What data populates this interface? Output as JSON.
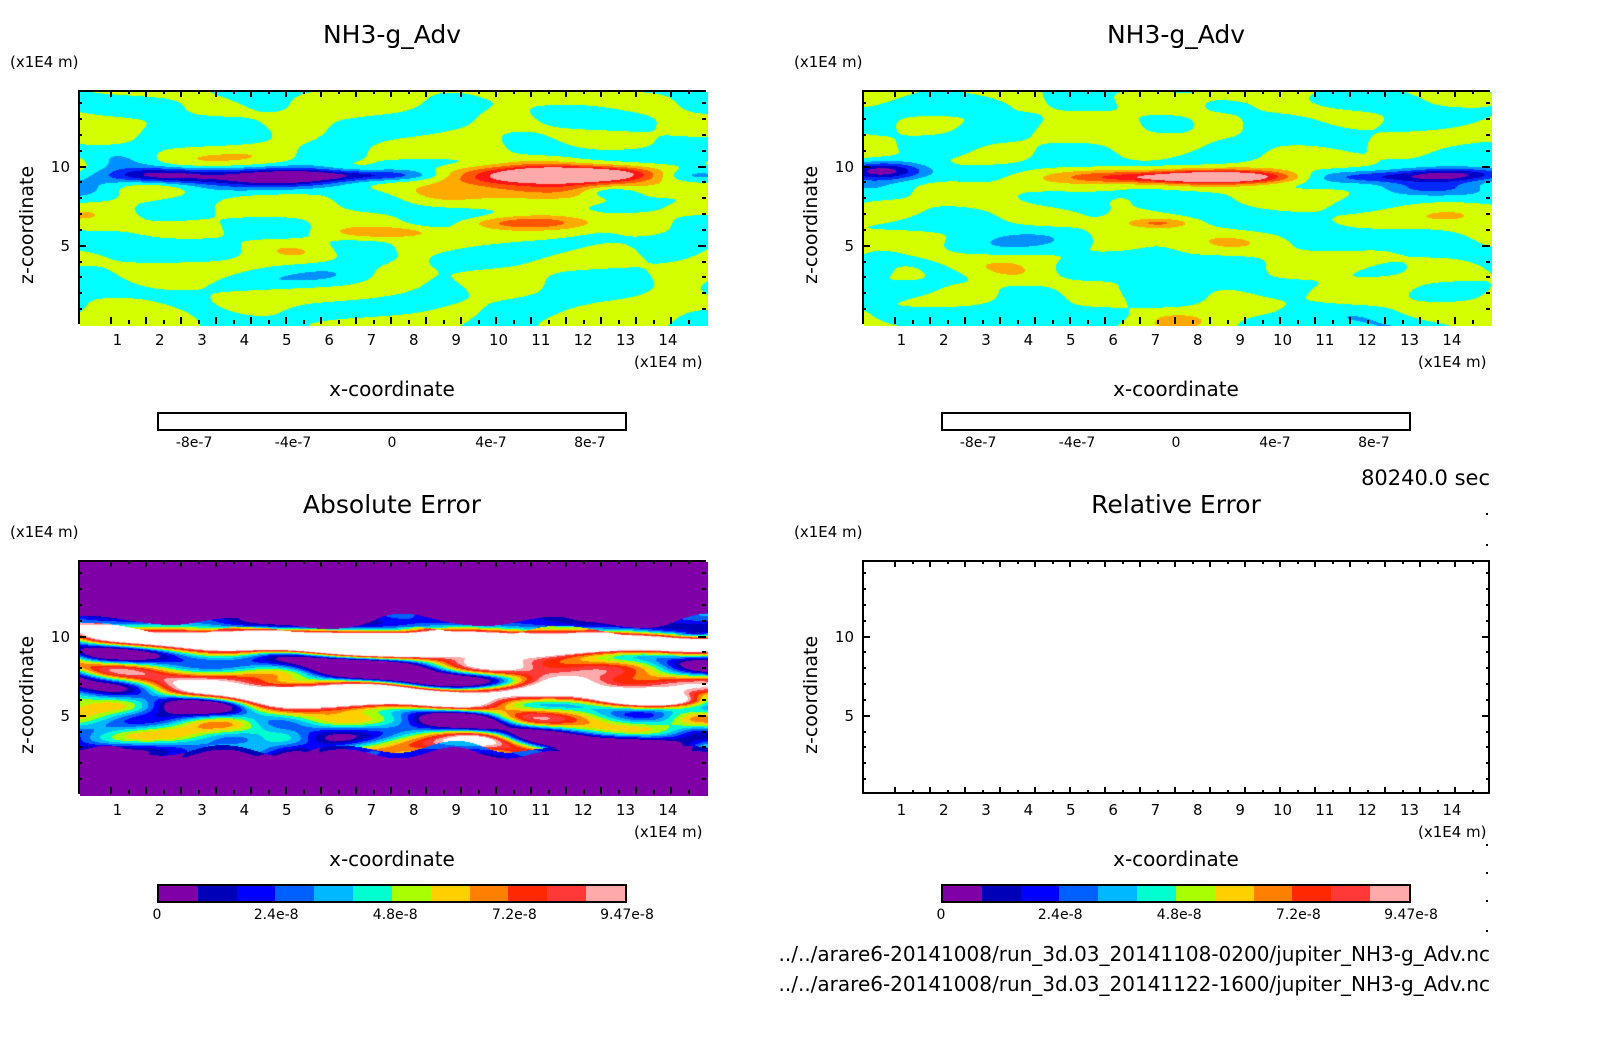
{
  "time_label": "80240.0 sec",
  "files": [
    "../../arare6-20141008/run_3d.03_20141108-0200/jupiter_NH3-g_Adv.nc",
    "../../arare6-20141008/run_3d.03_20141122-1600/jupiter_NH3-g_Adv.nc"
  ],
  "chart_data": [
    {
      "type": "heatmap",
      "title": "NH3-g_Adv",
      "xlabel": "x-coordinate",
      "ylabel": "z-coordinate",
      "x_unit": "(x1E4 m)",
      "y_unit": "(x1E4 m)",
      "xlim": [
        0.07,
        14.9
      ],
      "ylim": [
        0.05,
        14.85
      ],
      "xticks": [
        1,
        2,
        3,
        4,
        5,
        6,
        7,
        8,
        9,
        10,
        11,
        12,
        13,
        14
      ],
      "yticks": [
        5,
        10
      ],
      "levels": [
        -8e-07,
        -6e-07,
        -4e-07,
        -2e-07,
        0,
        2e-07,
        4e-07,
        6e-07,
        8e-07
      ],
      "colors": [
        "#8000a8",
        "#0000c8",
        "#0028ff",
        "#0090ff",
        "#00ffff",
        "#d4ff00",
        "#ffaa00",
        "#ff5500",
        "#ff1414",
        "#ffaaaa"
      ],
      "colorbar_labels": [
        {
          "text": "-8e-7",
          "value": -8e-07
        },
        {
          "text": "-4e-7",
          "value": -4e-07
        },
        {
          "text": "0",
          "value": 0
        },
        {
          "text": "4e-7",
          "value": 4e-07
        },
        {
          "text": "8e-7",
          "value": 8e-07
        }
      ],
      "colorbar_range": [
        -9.5e-07,
        9.5e-07
      ],
      "field": {
        "kind": "signed",
        "seed": 11,
        "noise_amp": 1.6e-07,
        "features": [
          {
            "x": 2.0,
            "z": 9.6,
            "sx": 0.9,
            "sz": 0.35,
            "amp": -9.5e-07
          },
          {
            "x": 4.8,
            "z": 9.5,
            "sx": 1.2,
            "sz": 0.4,
            "amp": -9.5e-07
          },
          {
            "x": 6.8,
            "z": 9.6,
            "sx": 1.2,
            "sz": 0.25,
            "amp": -6e-07
          },
          {
            "x": 10.5,
            "z": 9.6,
            "sx": 1.6,
            "sz": 0.45,
            "amp": 9e-07
          },
          {
            "x": 12.3,
            "z": 9.7,
            "sx": 1.1,
            "sz": 0.35,
            "amp": 8e-07
          },
          {
            "x": 11.0,
            "z": 8.6,
            "sx": 1.1,
            "sz": 0.5,
            "amp": 5e-07
          },
          {
            "x": 10.5,
            "z": 6.6,
            "sx": 1.0,
            "sz": 0.3,
            "amp": 5e-07
          },
          {
            "x": 7.3,
            "z": 6.0,
            "sx": 0.8,
            "sz": 0.25,
            "amp": 3.5e-07
          },
          {
            "x": 14.5,
            "z": 9.6,
            "sx": 0.7,
            "sz": 0.3,
            "amp": -4e-07
          },
          {
            "x": 12.5,
            "z": 8.6,
            "sx": 0.5,
            "sz": 0.3,
            "amp": -3.5e-07
          }
        ]
      }
    },
    {
      "type": "heatmap",
      "title": "NH3-g_Adv",
      "xlabel": "x-coordinate",
      "ylabel": "z-coordinate",
      "x_unit": "(x1E4 m)",
      "y_unit": "(x1E4 m)",
      "xlim": [
        0.07,
        14.9
      ],
      "ylim": [
        0.05,
        14.85
      ],
      "xticks": [
        1,
        2,
        3,
        4,
        5,
        6,
        7,
        8,
        9,
        10,
        11,
        12,
        13,
        14
      ],
      "yticks": [
        5,
        10
      ],
      "levels": [
        -8e-07,
        -6e-07,
        -4e-07,
        -2e-07,
        0,
        2e-07,
        4e-07,
        6e-07,
        8e-07
      ],
      "colors": [
        "#8000a8",
        "#0000c8",
        "#0028ff",
        "#0090ff",
        "#00ffff",
        "#d4ff00",
        "#ffaa00",
        "#ff5500",
        "#ff1414",
        "#ffaaaa"
      ],
      "colorbar_labels": [
        {
          "text": "-8e-7",
          "value": -8e-07
        },
        {
          "text": "-4e-7",
          "value": -4e-07
        },
        {
          "text": "0",
          "value": 0
        },
        {
          "text": "4e-7",
          "value": 4e-07
        },
        {
          "text": "8e-7",
          "value": 8e-07
        }
      ],
      "colorbar_range": [
        -9.5e-07,
        9.5e-07
      ],
      "field": {
        "kind": "signed",
        "seed": 29,
        "noise_amp": 1.6e-07,
        "features": [
          {
            "x": 0.5,
            "z": 9.9,
            "sx": 0.7,
            "sz": 0.4,
            "amp": -9.5e-07
          },
          {
            "x": 7.0,
            "z": 9.5,
            "sx": 1.4,
            "sz": 0.3,
            "amp": 8.5e-07
          },
          {
            "x": 9.0,
            "z": 9.5,
            "sx": 1.2,
            "sz": 0.3,
            "amp": 8.5e-07
          },
          {
            "x": 12.5,
            "z": 9.5,
            "sx": 1.5,
            "sz": 0.3,
            "amp": -6.5e-07
          },
          {
            "x": 14.2,
            "z": 9.7,
            "sx": 0.8,
            "sz": 0.3,
            "amp": -6e-07
          },
          {
            "x": 13.3,
            "z": 8.8,
            "sx": 0.8,
            "sz": 0.3,
            "amp": -3.5e-07
          },
          {
            "x": 7.0,
            "z": 6.6,
            "sx": 0.5,
            "sz": 0.2,
            "amp": 3.5e-07
          }
        ]
      }
    },
    {
      "type": "heatmap",
      "title": "Absolute Error",
      "xlabel": "x-coordinate",
      "ylabel": "z-coordinate",
      "x_unit": "(x1E4 m)",
      "y_unit": "(x1E4 m)",
      "xlim": [
        0.07,
        14.9
      ],
      "ylim": [
        0.05,
        14.85
      ],
      "xticks": [
        1,
        2,
        3,
        4,
        5,
        6,
        7,
        8,
        9,
        10,
        11,
        12,
        13,
        14
      ],
      "yticks": [
        5,
        10
      ],
      "levels": [
        7.89e-09,
        1.58e-08,
        2.37e-08,
        3.16e-08,
        3.95e-08,
        4.74e-08,
        5.52e-08,
        6.31e-08,
        7.1e-08,
        7.89e-08,
        8.68e-08
      ],
      "max_value": 9.47e-08,
      "colors": [
        "#8000a8",
        "#0000b8",
        "#0000ff",
        "#0060ff",
        "#00b8ff",
        "#00ffd0",
        "#a8ff00",
        "#ffd000",
        "#ff8000",
        "#ff2800",
        "#ff3838",
        "#ffaaaa"
      ],
      "colorbar_labels": [
        {
          "text": "0",
          "value": 0
        },
        {
          "text": "2.4e-8",
          "value": 2.4e-08
        },
        {
          "text": "4.8e-8",
          "value": 4.8e-08
        },
        {
          "text": "7.2e-8",
          "value": 7.2e-08
        },
        {
          "text": "9.47e-8",
          "value": 9.47e-08
        }
      ],
      "colorbar_range": [
        0,
        9.47e-08
      ],
      "field": {
        "kind": "abs",
        "seed": 53,
        "noise_amp": 6e-08,
        "band": [
          3.0,
          10.5
        ],
        "features": [
          {
            "x": 3.5,
            "z": 9.9,
            "sx": 2.2,
            "sz": 0.45,
            "amp": 1.6e-07
          },
          {
            "x": 8.5,
            "z": 9.8,
            "sx": 2.0,
            "sz": 0.5,
            "amp": 1.6e-07
          },
          {
            "x": 12.8,
            "z": 9.7,
            "sx": 2.0,
            "sz": 0.45,
            "amp": 1.5e-07
          },
          {
            "x": 5.5,
            "z": 6.4,
            "sx": 1.8,
            "sz": 0.45,
            "amp": 1.4e-07
          },
          {
            "x": 11.0,
            "z": 6.6,
            "sx": 1.6,
            "sz": 0.5,
            "amp": 1.4e-07
          },
          {
            "x": 13.6,
            "z": 6.2,
            "sx": 0.8,
            "sz": 0.35,
            "amp": 1e-07
          }
        ]
      }
    },
    {
      "type": "heatmap",
      "title": "Relative Error",
      "xlabel": "x-coordinate",
      "ylabel": "z-coordinate",
      "x_unit": "(x1E4 m)",
      "y_unit": "(x1E4 m)",
      "xlim": [
        0.07,
        14.9
      ],
      "ylim": [
        0.05,
        14.85
      ],
      "xticks": [
        1,
        2,
        3,
        4,
        5,
        6,
        7,
        8,
        9,
        10,
        11,
        12,
        13,
        14
      ],
      "yticks": [
        5,
        10
      ],
      "levels": [
        7.89e-09,
        1.58e-08,
        2.37e-08,
        3.16e-08,
        3.95e-08,
        4.74e-08,
        5.52e-08,
        6.31e-08,
        7.1e-08,
        7.89e-08,
        8.68e-08
      ],
      "colors": [
        "#8000a8",
        "#0000b8",
        "#0000ff",
        "#0060ff",
        "#00b8ff",
        "#00ffd0",
        "#a8ff00",
        "#ffd000",
        "#ff8000",
        "#ff2800",
        "#ff3838",
        "#ffaaaa"
      ],
      "colorbar_labels": [
        {
          "text": "0",
          "value": 0
        },
        {
          "text": "2.4e-8",
          "value": 2.4e-08
        },
        {
          "text": "4.8e-8",
          "value": 4.8e-08
        },
        {
          "text": "7.2e-8",
          "value": 7.2e-08
        },
        {
          "text": "9.47e-8",
          "value": 9.47e-08
        }
      ],
      "colorbar_range": [
        0,
        9.47e-08
      ],
      "field": {
        "kind": "empty"
      }
    }
  ]
}
